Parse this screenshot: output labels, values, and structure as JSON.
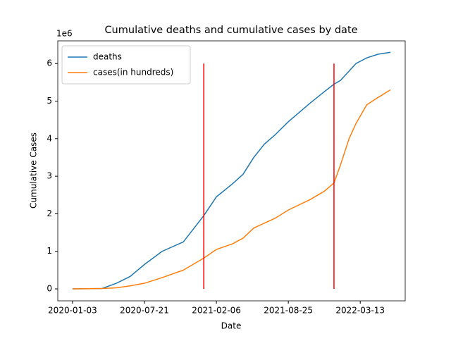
{
  "chart_data": {
    "type": "line",
    "title": "Cumulative deaths and cumulative cases by date",
    "x_label": "Date",
    "y_label": "Cumulative Cases",
    "y_offset_label": "1e6",
    "x": [
      "2020-01-03",
      "2020-03-25",
      "2020-05-04",
      "2020-06-11",
      "2020-07-21",
      "2020-09-08",
      "2020-11-06",
      "2021-01-02",
      "2021-02-06",
      "2021-03-23",
      "2021-04-21",
      "2021-05-21",
      "2021-06-19",
      "2021-07-19",
      "2021-08-25",
      "2021-10-25",
      "2021-12-03",
      "2021-12-30",
      "2022-01-17",
      "2022-02-10",
      "2022-03-01",
      "2022-03-31",
      "2022-05-02",
      "2022-06-05"
    ],
    "series": [
      {
        "name": "deaths",
        "color": "#1f77b4",
        "values": [
          0,
          10000,
          150000,
          330000,
          650000,
          1000000,
          1250000,
          1950000,
          2450000,
          2800000,
          3050000,
          3500000,
          3850000,
          4100000,
          4450000,
          4950000,
          5250000,
          5450000,
          5550000,
          5800000,
          6000000,
          6150000,
          6250000,
          6300000
        ]
      },
      {
        "name": "cases(in hundreds)",
        "color": "#ff7f0e",
        "values": [
          0,
          10000,
          30000,
          80000,
          150000,
          300000,
          500000,
          820000,
          1050000,
          1200000,
          1350000,
          1620000,
          1750000,
          1880000,
          2100000,
          2380000,
          2600000,
          2820000,
          3300000,
          4000000,
          4400000,
          4900000,
          5100000,
          5300000
        ]
      }
    ],
    "vlines": {
      "x": [
        "2021-01-02",
        "2021-12-30"
      ],
      "ymin": 0,
      "ymax": 6000000,
      "color": "#ff0000"
    },
    "xlim": [
      "2019-11-23",
      "2022-07-16"
    ],
    "xticks": [
      "2020-01-03",
      "2020-07-21",
      "2021-02-06",
      "2021-08-25",
      "2022-03-13"
    ],
    "ylim": [
      -318000,
      6604000
    ],
    "yticks": [
      {
        "value": 0,
        "label": "0"
      },
      {
        "value": 1000000,
        "label": "1"
      },
      {
        "value": 2000000,
        "label": "2"
      },
      {
        "value": 3000000,
        "label": "3"
      },
      {
        "value": 4000000,
        "label": "4"
      },
      {
        "value": 5000000,
        "label": "5"
      },
      {
        "value": 6000000,
        "label": "6"
      }
    ],
    "legend": "upper left"
  }
}
